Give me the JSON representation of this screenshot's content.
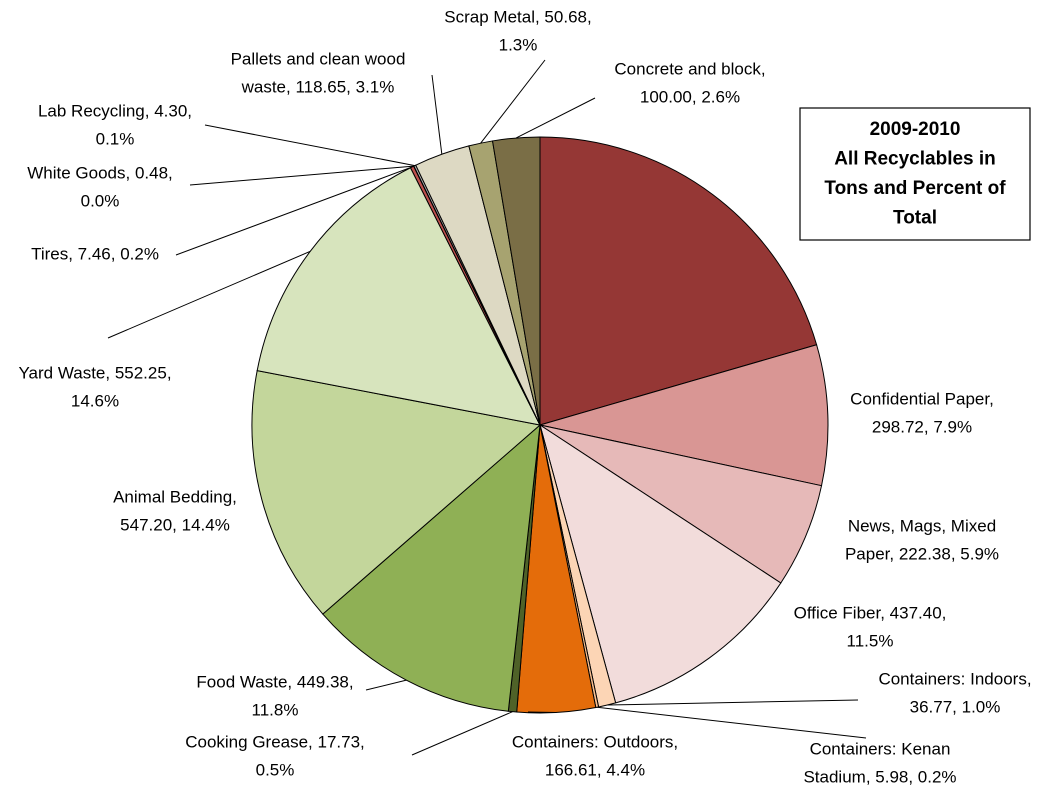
{
  "chart_data": {
    "type": "pie",
    "title": [
      "2009-2010",
      "All Recyclables in",
      "Tons and Percent of",
      "Total"
    ],
    "labels": [
      null,
      [
        "Confidential Paper,",
        "298.72, 7.9%"
      ],
      [
        "News, Mags, Mixed",
        "Paper, 222.38, 5.9%"
      ],
      [
        "Office Fiber, 437.40,",
        "11.5%"
      ],
      [
        "Containers: Indoors,",
        "36.77, 1.0%"
      ],
      [
        "Containers: Kenan",
        "Stadium, 5.98, 0.2%"
      ],
      [
        "Containers: Outdoors,",
        "166.61, 4.4%"
      ],
      [
        "Cooking Grease, 17.73,",
        "0.5%"
      ],
      [
        "Food Waste, 449.38,",
        "11.8%"
      ],
      [
        "Animal Bedding,",
        "547.20, 14.4%"
      ],
      [
        "Yard Waste, 552.25,",
        "14.6%"
      ],
      [
        "Tires, 7.46, 0.2%"
      ],
      [
        "White Goods, 0.48,",
        "0.0%"
      ],
      [
        "Lab Recycling, 4.30,",
        "0.1%"
      ],
      [
        "Pallets and clean wood",
        "waste, 118.65, 3.1%"
      ],
      [
        "Scrap Metal, 50.68,",
        "1.3%"
      ],
      [
        "Concrete and block,",
        "100.00, 2.6%"
      ]
    ],
    "values": [
      778,
      298.72,
      222.38,
      437.4,
      36.77,
      5.98,
      166.61,
      17.73,
      449.38,
      547.2,
      552.25,
      7.46,
      0.48,
      4.3,
      118.65,
      50.68,
      100.0
    ],
    "colors": [
      "#953735",
      "#d99694",
      "#e6b9b8",
      "#f2dcdb",
      "#fcd5b5",
      "#fac090",
      "#e46c0a",
      "#4f6228",
      "#8fb055",
      "#c3d69b",
      "#d7e4bd",
      "#c0504d",
      "#f2f2f2",
      "#b7b7b7",
      "#ddd9c3",
      "#a7a370",
      "#7a6e46"
    ]
  }
}
